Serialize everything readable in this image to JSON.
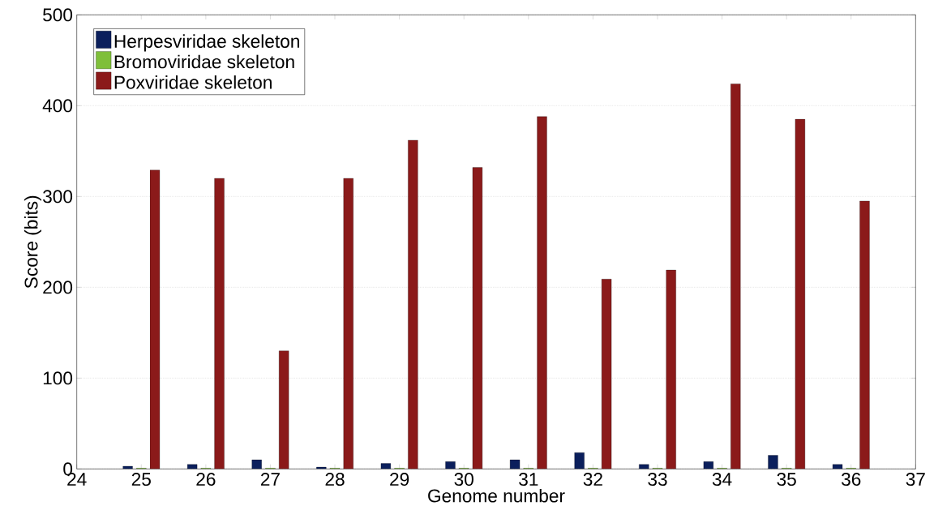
{
  "chart_data": {
    "type": "bar",
    "xlabel": "Genome number",
    "ylabel": "Score (bits)",
    "x": [
      25,
      26,
      27,
      28,
      29,
      30,
      31,
      32,
      33,
      34,
      35,
      36
    ],
    "series": [
      {
        "name": "Herpesviridae skeleton",
        "color": "#0b1f5c",
        "values": [
          3,
          5,
          10,
          2,
          6,
          8,
          10,
          18,
          5,
          8,
          15,
          5
        ]
      },
      {
        "name": "Bromoviridae skeleton",
        "color": "#7fbf3a",
        "values": [
          1,
          1,
          1,
          1,
          1,
          1,
          1,
          1,
          1,
          1,
          1,
          1
        ]
      },
      {
        "name": "Poxviridae skeleton",
        "color": "#8b1a1a",
        "values": [
          329,
          320,
          130,
          320,
          362,
          332,
          388,
          209,
          219,
          424,
          385,
          295
        ]
      }
    ],
    "xlim": [
      24,
      37
    ],
    "ylim": [
      0,
      500
    ],
    "xticks": [
      24,
      25,
      26,
      27,
      28,
      29,
      30,
      31,
      32,
      33,
      34,
      35,
      36,
      37
    ],
    "yticks": [
      0,
      100,
      200,
      300,
      400,
      500
    ],
    "grid": "y",
    "legend": "top left"
  }
}
